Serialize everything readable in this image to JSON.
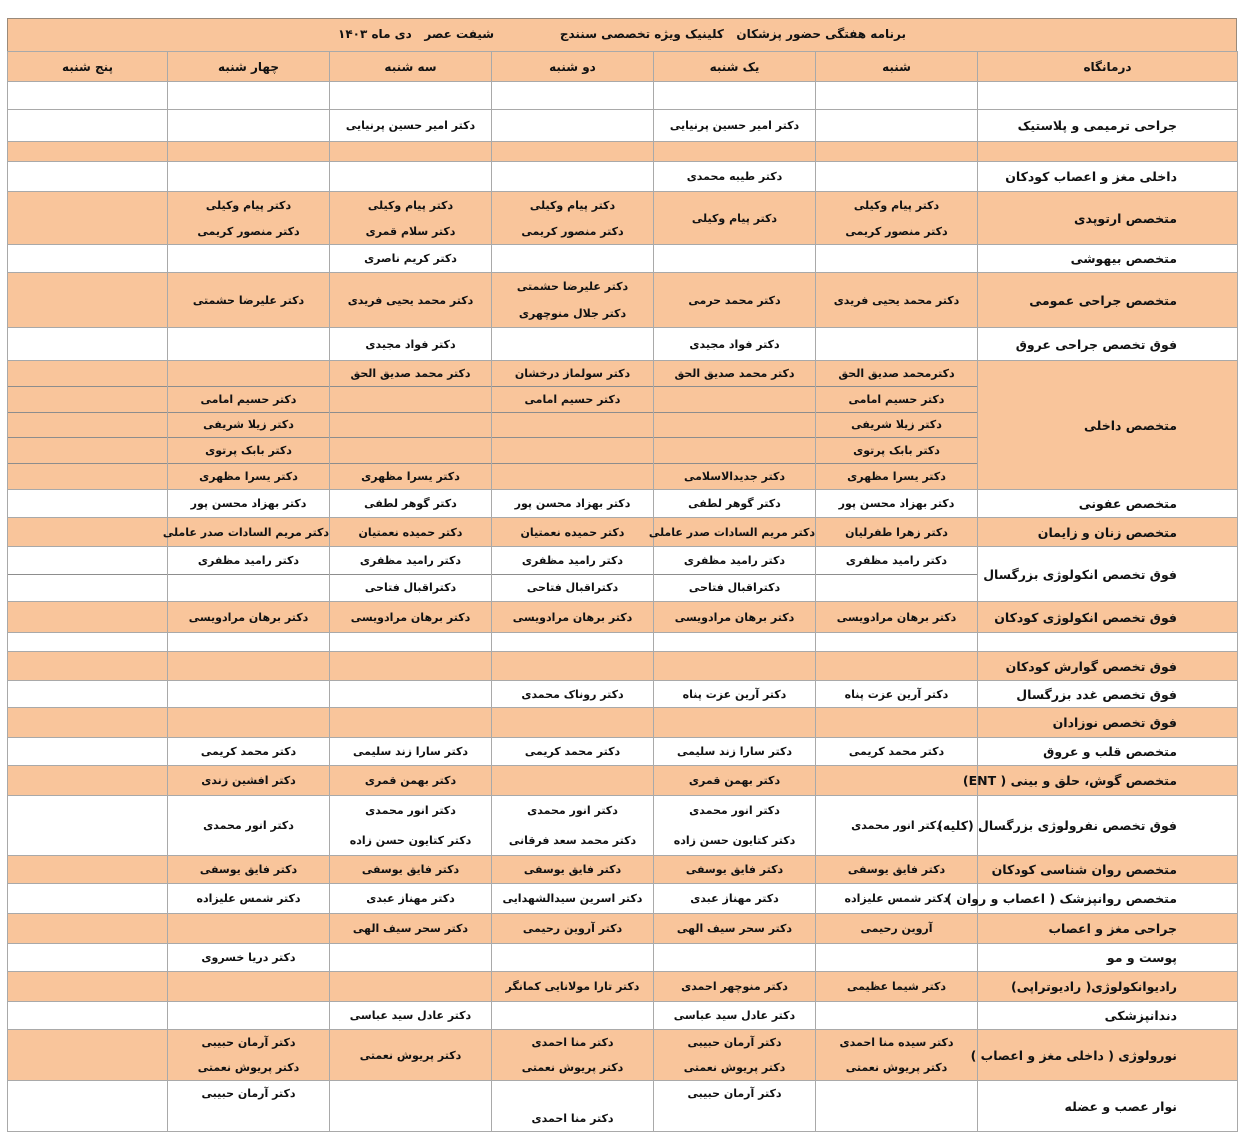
{
  "title": {
    "main": "برنامه هفتگی حضور پزشکان   کلینیک ویژه تخصصی سنندج",
    "shift": "شیفت عصر   دی ماه ۱۴۰۳"
  },
  "colors": {
    "shaded_row": "#F9C59B",
    "plain_row": "#FFFFFF",
    "grid": "#A9A9A9"
  },
  "headers": [
    "درمانگاه",
    "شنبه",
    "یک شنبه",
    "دو شنبه",
    "سه شنبه",
    "چهار شنبه",
    "پنج شنبه"
  ],
  "rows": [
    {
      "clinic": "",
      "shaded": false,
      "cells": [
        "",
        "",
        "",
        "",
        "",
        ""
      ]
    },
    {
      "clinic": "جراحی ترمیمی و پلاستیک",
      "shaded": false,
      "cells": [
        "",
        "دکتر امیر حسین پرنیایی",
        "",
        "دکتر امیر حسین پرنیایی",
        "",
        ""
      ]
    },
    {
      "clinic": "",
      "shaded": true,
      "cells": [
        "",
        "",
        "",
        "",
        "",
        ""
      ]
    },
    {
      "clinic": "داخلی مغز و اعصاب کودکان",
      "shaded": false,
      "cells": [
        "",
        "دکتر طیبه محمدی",
        "",
        "",
        "",
        ""
      ]
    },
    {
      "clinic": "متخصص ارتوپدی",
      "shaded": true,
      "cells": [
        [
          "دکتر پیام وکیلی",
          "دکتر منصور کریمی"
        ],
        "دکتر پیام وکیلی",
        [
          "دکتر پیام وکیلی",
          "دکتر منصور کریمی"
        ],
        [
          "دکتر پیام وکیلی",
          "دکتر سلام قمری"
        ],
        [
          "دکتر پیام وکیلی",
          "دکتر منصور کریمی"
        ],
        ""
      ]
    },
    {
      "clinic": "متخصص بیهوشی",
      "shaded": false,
      "cells": [
        "",
        "",
        "",
        "دکتر کریم ناصری",
        "",
        ""
      ]
    },
    {
      "clinic": "متخصص جراحی عمومی",
      "shaded": true,
      "cells": [
        "دکتر محمد یحیی فریدی",
        "دکتر محمد حرمی",
        [
          "دکتر علیرضا حشمتی",
          "دکتر جلال منوچهری"
        ],
        "دکتر محمد یحیی فریدی",
        "دکتر علیرضا حشمتی",
        ""
      ]
    },
    {
      "clinic": "فوق تخصص جراحی عروق",
      "shaded": false,
      "cells": [
        "",
        "دکتر فواد مجیدی",
        "",
        "دکتر فواد مجیدی",
        "",
        ""
      ]
    },
    {
      "clinic": "متخصص داخلی",
      "shaded": true,
      "divided": true,
      "cells": [
        [
          "دکترمحمد صدیق الحق",
          "دکتر حسیم امامی",
          "دکتر زیلا شریفی",
          "دکتر بابک پرتوی",
          "دکتر یسرا مظهری"
        ],
        [
          "دکتر محمد صدیق الحق",
          "",
          "",
          "",
          "دکتر جدیدالاسلامی"
        ],
        [
          "دکتر سولماز درخشان",
          "دکتر حسیم امامی",
          "",
          "",
          ""
        ],
        [
          "دکتر محمد صدیق الحق",
          "",
          "",
          "",
          "دکتر یسرا مظهری"
        ],
        [
          "",
          "دکتر حسیم امامی",
          "دکتر زیلا شریفی",
          "دکتر بابک پرتوی",
          "دکتر یسرا مظهری"
        ],
        [
          "",
          "",
          "",
          "",
          ""
        ]
      ]
    },
    {
      "clinic": "متخصص عفونی",
      "shaded": false,
      "cells": [
        "دکتر بهزاد محسن پور",
        "دکتر گوهر لطفی",
        "دکتر بهزاد محسن پور",
        "دکتر گوهر لطفی",
        "دکتر بهزاد محسن پور",
        ""
      ]
    },
    {
      "clinic": "متخصص زنان و زایمان",
      "shaded": true,
      "cells": [
        "دکتر زهرا طفرلیان",
        "دکتر مریم السادات صدر عاملی",
        "دکتر حمیده نعمتیان",
        "دکتر حمیده نعمتیان",
        "دکتر مریم السادات صدر عاملی",
        ""
      ]
    },
    {
      "clinic": "فوق تخصص انکولوژی بزرگسال",
      "shaded": false,
      "divided": true,
      "cells": [
        [
          "دکتر رامید مظفری",
          ""
        ],
        [
          "دکتر رامید مظفری",
          "دکتراقبال فتاحی"
        ],
        [
          "دکتر رامید مظفری",
          "دکتراقبال فتاحی"
        ],
        [
          "دکتر رامید مظفری",
          "دکتراقبال فتاحی"
        ],
        [
          "دکتر رامید مظفری",
          ""
        ],
        [
          "",
          ""
        ]
      ]
    },
    {
      "clinic": "فوق تخصص انکولوژی کودکان",
      "shaded": true,
      "cells": [
        "دکتر برهان مرادویسی",
        "دکتر برهان مرادویسی",
        "دکتر برهان مرادویسی",
        "دکتر برهان مرادویسی",
        "دکتر برهان مرادویسی",
        ""
      ]
    },
    {
      "clinic": "",
      "shaded": false,
      "cells": [
        "",
        "",
        "",
        "",
        "",
        ""
      ]
    },
    {
      "clinic": "فوق تخصص گوارش کودکان",
      "shaded": true,
      "cells": [
        "",
        "",
        "",
        "",
        "",
        ""
      ]
    },
    {
      "clinic": "فوق تخصص غدد بزرگسال",
      "shaded": false,
      "cells": [
        "دکتر آرین عزت پناه",
        "دکتر آرین عزت پناه",
        "دکتر روناک محمدی",
        "",
        "",
        ""
      ]
    },
    {
      "clinic": "فوق تخصص نوزادان",
      "shaded": true,
      "cells": [
        "",
        "",
        "",
        "",
        "",
        ""
      ]
    },
    {
      "clinic": "متخصص قلب و عروق",
      "shaded": false,
      "cells": [
        "دکتر محمد کریمی",
        "دکتر سارا زند سلیمی",
        "دکتر محمد کریمی",
        "دکتر سارا زند سلیمی",
        "دکتر محمد کریمی",
        ""
      ]
    },
    {
      "clinic": "متخصص گوش، حلق و بینی ( ENT)",
      "shaded": true,
      "cells": [
        "",
        "دکتر بهمن قمری",
        "",
        "دکتر بهمن قمری",
        "دکتر افشین زندی",
        ""
      ]
    },
    {
      "clinic": "فوق تخصص نفرولوژی بزرگسال (کلیه)",
      "shaded": false,
      "cells": [
        "دکتر انور محمدی",
        [
          "دکتر انور محمدی",
          "دکتر کتایون حسن زاده"
        ],
        [
          "دکتر انور محمدی",
          "دکتر محمد سعد فرقانی"
        ],
        [
          "دکتر انور محمدی",
          "دکتر کتایون حسن زاده"
        ],
        "دکتر انور محمدی",
        ""
      ]
    },
    {
      "clinic": "متخصص روان شناسی  کودکان",
      "shaded": true,
      "cells": [
        "دکتر فایق یوسفی",
        "دکتر فایق یوسفی",
        "دکتر فایق یوسفی",
        "دکتر فایق یوسفی",
        "دکتر فایق یوسفی",
        ""
      ]
    },
    {
      "clinic": "متخصص روانپزشک ( اعصاب و روان )",
      "shaded": false,
      "cells": [
        "دکتر شمس علیزاده",
        "دکتر مهناز عبدی",
        "دکتر اسرین سیدالشهدایی",
        "دکتر مهناز عبدی",
        "دکتر شمس علیزاده",
        ""
      ]
    },
    {
      "clinic": "جراحی مغز و اعصاب",
      "shaded": true,
      "cells": [
        "آروین رحیمی",
        "دکتر سحر سیف الهی",
        "دکتر آروین رحیمی",
        "دکتر سحر سیف الهی",
        "",
        ""
      ]
    },
    {
      "clinic": "پوست و مو",
      "shaded": false,
      "cells": [
        "",
        "",
        "",
        "",
        "دکتر دریا خسروی",
        ""
      ]
    },
    {
      "clinic": "رادیوانکولوژی( رادیوتراپی)",
      "shaded": true,
      "cells": [
        "دکتر شیما عظیمی",
        "دکتر منوچهر احمدی",
        "دکتر تارا مولانایی کمانگر",
        "",
        "",
        ""
      ]
    },
    {
      "clinic": "دندانپزشکی",
      "shaded": false,
      "cells": [
        "",
        "دکتر عادل سید عباسی",
        "",
        "دکتر عادل سید عباسی",
        "",
        ""
      ]
    },
    {
      "clinic": "نورولوژی ( داخلی مغز و اعصاب )",
      "shaded": true,
      "cells": [
        [
          "دکتر سیده منا احمدی",
          "دکتر پریوش نعمتی"
        ],
        [
          "دکتر آرمان حبیبی",
          "دکتر پریوش نعمتی"
        ],
        [
          "دکتر منا احمدی",
          "دکتر پریوش نعمتی"
        ],
        "دکتر پریوش نعمتی",
        [
          "دکتر آرمان حبیبی",
          "دکتر پریوش نعمتی"
        ],
        ""
      ]
    },
    {
      "clinic": "نوار عصب و عضله",
      "shaded": false,
      "cells": [
        "",
        [
          "دکتر آرمان حبیبی",
          ""
        ],
        [
          "",
          "دکتر منا احمدی"
        ],
        "",
        [
          "دکتر آرمان حبیبی",
          ""
        ],
        ""
      ]
    }
  ]
}
